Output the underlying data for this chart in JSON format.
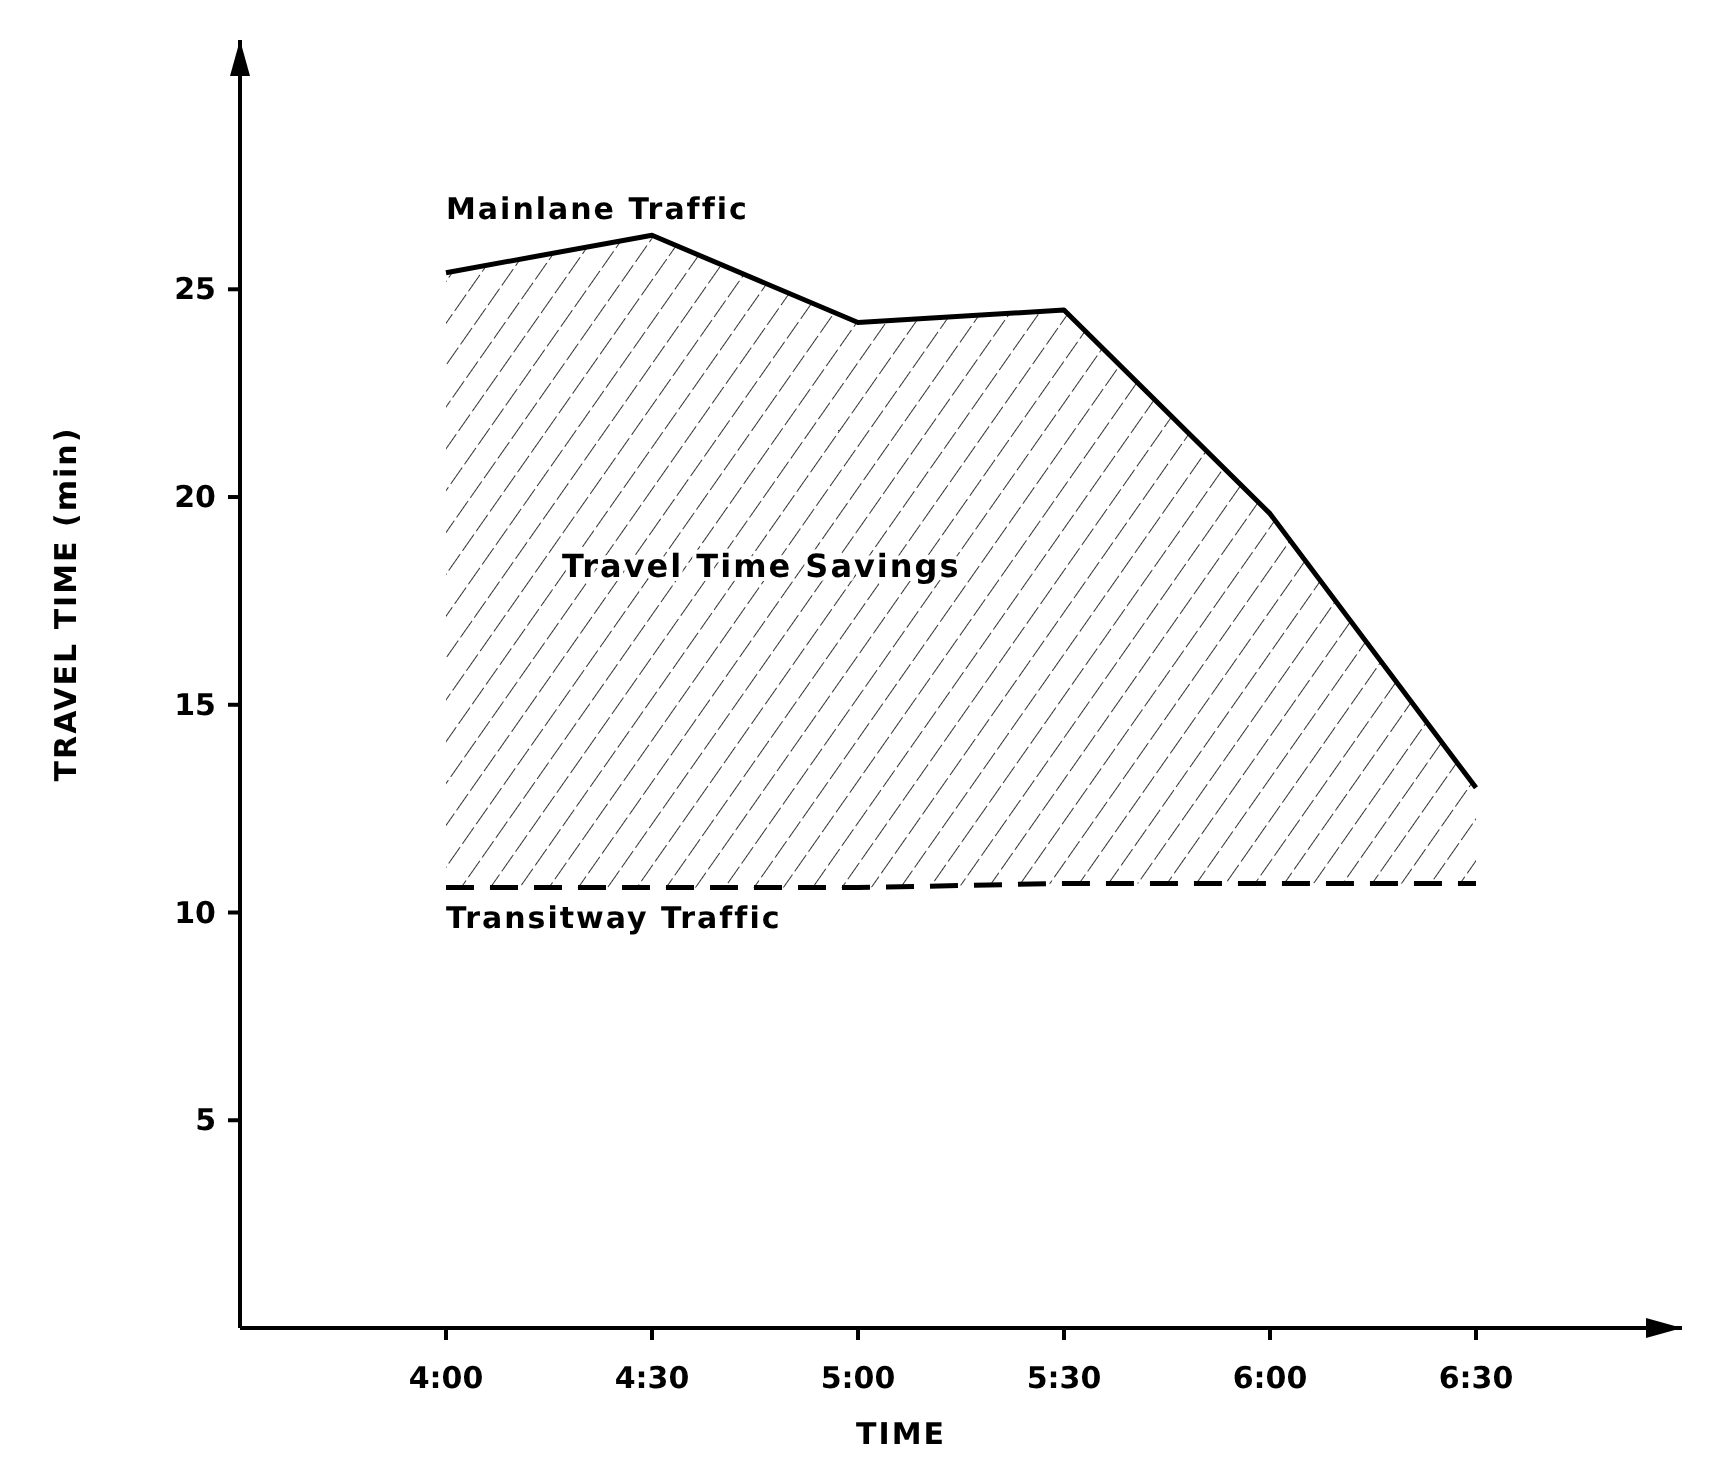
{
  "chart_data": {
    "type": "line",
    "xlabel": "TIME",
    "ylabel": "TRAVEL TIME (min)",
    "x": [
      4,
      4.5,
      5,
      5.5,
      6,
      6.5
    ],
    "xlim": [
      3.5,
      7
    ],
    "ylim": [
      0,
      31
    ],
    "xticks": [
      {
        "value": 4,
        "label": "4:00"
      },
      {
        "value": 4.5,
        "label": "4:30"
      },
      {
        "value": 5,
        "label": "5:00"
      },
      {
        "value": 5.5,
        "label": "5:30"
      },
      {
        "value": 6,
        "label": "6:00"
      },
      {
        "value": 6.5,
        "label": "6:30"
      }
    ],
    "yticks": [
      5,
      10,
      15,
      20,
      25
    ],
    "series": [
      {
        "name": "Mainlane Traffic",
        "color": "#000000",
        "line_style": "solid",
        "values": [
          25.4,
          26.3,
          24.2,
          24.5,
          19.6,
          13.0
        ],
        "lower": [
          10.6,
          10.6,
          10.6,
          10.7,
          10.7,
          10.7
        ],
        "upper": [
          25.4,
          26.3,
          24.2,
          24.5,
          19.6,
          13.0
        ]
      },
      {
        "name": "Transitway Traffic",
        "color": "#000000",
        "line_style": "dashed",
        "values": [
          10.6,
          10.6,
          10.6,
          10.7,
          10.7,
          10.7
        ]
      }
    ],
    "annotations": [
      "Travel Time Savings"
    ],
    "grid": false,
    "marker": "none"
  }
}
